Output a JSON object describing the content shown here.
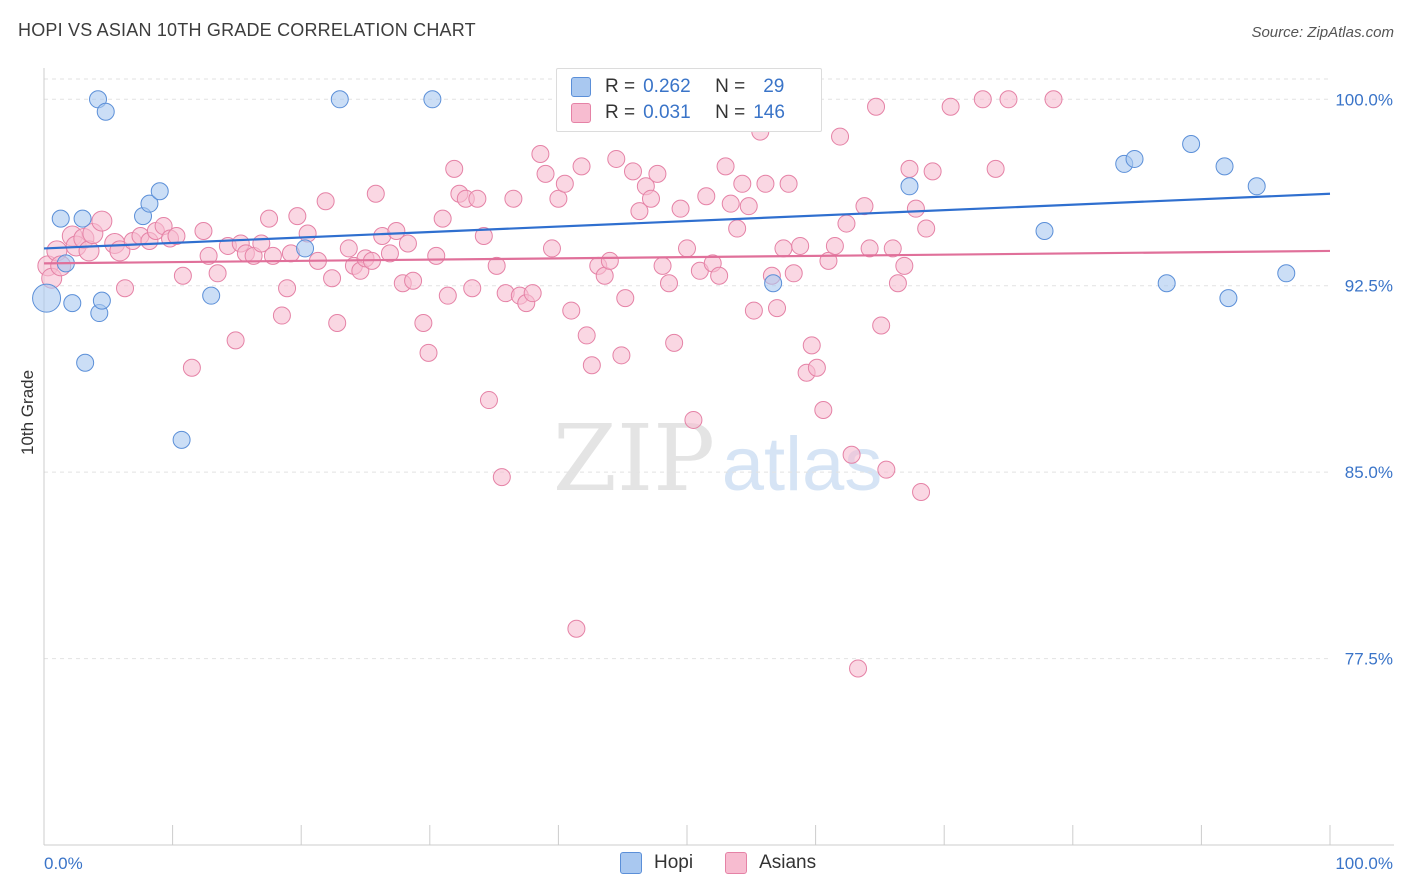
{
  "title": "HOPI VS ASIAN 10TH GRADE CORRELATION CHART",
  "source": "Source: ZipAtlas.com",
  "watermark": {
    "zip": "ZIP",
    "atlas": "atlas"
  },
  "legend": {
    "rows": [
      {
        "r_label": "R =",
        "r_value": "0.262",
        "n_label": "N =",
        "n_value": "29",
        "color": "#a9c8f0",
        "border": "#5b8fd8"
      },
      {
        "r_label": "R =",
        "r_value": "0.031",
        "n_label": "N =",
        "n_value": "146",
        "color": "#f7bcd0",
        "border": "#e582a6"
      }
    ]
  },
  "bottom_legend": [
    {
      "label": "Hopi",
      "color": "#a9c8f0",
      "border": "#5b8fd8"
    },
    {
      "label": "Asians",
      "color": "#f7bcd0",
      "border": "#e582a6"
    }
  ],
  "chart_data": {
    "type": "scatter",
    "title": "HOPI VS ASIAN 10TH GRADE CORRELATION CHART",
    "xlabel": "",
    "ylabel": "10th Grade",
    "xlim": [
      0,
      100
    ],
    "ylim": [
      70.0,
      101.5
    ],
    "x_tick_labels": [
      "0.0%",
      "100.0%"
    ],
    "y_ticks": [
      77.5,
      85.0,
      92.5,
      100.0
    ],
    "y_tick_labels": [
      "77.5%",
      "85.0%",
      "92.5%",
      "100.0%"
    ],
    "grid": true,
    "series": [
      {
        "name": "Hopi",
        "color": "#a9c8f0",
        "stroke": "#5b8fd8",
        "trend": {
          "color": "#2f6fcf",
          "x": [
            0,
            100
          ],
          "y": [
            94.0,
            96.2
          ]
        },
        "points": [
          [
            0.2,
            92.0
          ],
          [
            1.3,
            95.2
          ],
          [
            1.7,
            93.4
          ],
          [
            2.2,
            91.8
          ],
          [
            3.0,
            95.2
          ],
          [
            3.2,
            89.4
          ],
          [
            4.3,
            91.4
          ],
          [
            4.5,
            91.9
          ],
          [
            4.2,
            100.0
          ],
          [
            4.8,
            99.5
          ],
          [
            7.7,
            95.3
          ],
          [
            8.2,
            95.8
          ],
          [
            9.0,
            96.3
          ],
          [
            10.7,
            86.3
          ],
          [
            13.0,
            92.1
          ],
          [
            20.3,
            94.0
          ],
          [
            23.0,
            100.0
          ],
          [
            30.2,
            100.0
          ],
          [
            67.3,
            96.5
          ],
          [
            77.8,
            94.7
          ],
          [
            84.0,
            97.4
          ],
          [
            84.8,
            97.6
          ],
          [
            87.3,
            92.6
          ],
          [
            89.2,
            98.2
          ],
          [
            91.8,
            97.3
          ],
          [
            94.3,
            96.5
          ],
          [
            96.6,
            93.0
          ],
          [
            56.7,
            92.6
          ],
          [
            92.1,
            92.0
          ]
        ]
      },
      {
        "name": "Asians",
        "color": "#f7bcd0",
        "stroke": "#e582a6",
        "trend": {
          "color": "#e0709a",
          "x": [
            0,
            100
          ],
          "y": [
            93.4,
            93.9
          ]
        },
        "points": [
          [
            0.3,
            93.3
          ],
          [
            0.6,
            92.8
          ],
          [
            1.0,
            93.9
          ],
          [
            1.3,
            93.3
          ],
          [
            2.2,
            94.5
          ],
          [
            2.5,
            94.1
          ],
          [
            3.1,
            94.4
          ],
          [
            3.5,
            93.9
          ],
          [
            3.8,
            94.6
          ],
          [
            4.5,
            95.1
          ],
          [
            5.5,
            94.2
          ],
          [
            5.9,
            93.9
          ],
          [
            6.3,
            92.4
          ],
          [
            6.9,
            94.3
          ],
          [
            7.5,
            94.5
          ],
          [
            8.2,
            94.3
          ],
          [
            8.7,
            94.7
          ],
          [
            9.3,
            94.9
          ],
          [
            9.8,
            94.4
          ],
          [
            10.3,
            94.5
          ],
          [
            10.8,
            92.9
          ],
          [
            11.5,
            89.2
          ],
          [
            12.4,
            94.7
          ],
          [
            12.8,
            93.7
          ],
          [
            13.5,
            93.0
          ],
          [
            14.3,
            94.1
          ],
          [
            14.9,
            90.3
          ],
          [
            15.3,
            94.2
          ],
          [
            15.7,
            93.8
          ],
          [
            16.3,
            93.7
          ],
          [
            16.9,
            94.2
          ],
          [
            17.5,
            95.2
          ],
          [
            17.8,
            93.7
          ],
          [
            18.5,
            91.3
          ],
          [
            18.9,
            92.4
          ],
          [
            19.2,
            93.8
          ],
          [
            19.7,
            95.3
          ],
          [
            20.5,
            94.6
          ],
          [
            21.3,
            93.5
          ],
          [
            21.9,
            95.9
          ],
          [
            22.4,
            92.8
          ],
          [
            22.8,
            91.0
          ],
          [
            23.7,
            94.0
          ],
          [
            24.1,
            93.3
          ],
          [
            24.6,
            93.1
          ],
          [
            25.0,
            93.6
          ],
          [
            25.5,
            93.5
          ],
          [
            25.8,
            96.2
          ],
          [
            26.3,
            94.5
          ],
          [
            26.9,
            93.8
          ],
          [
            27.4,
            94.7
          ],
          [
            27.9,
            92.6
          ],
          [
            28.3,
            94.2
          ],
          [
            28.7,
            92.7
          ],
          [
            29.5,
            91.0
          ],
          [
            29.9,
            89.8
          ],
          [
            30.5,
            93.7
          ],
          [
            31.0,
            95.2
          ],
          [
            31.4,
            92.1
          ],
          [
            31.9,
            97.2
          ],
          [
            32.3,
            96.2
          ],
          [
            32.8,
            96.0
          ],
          [
            33.3,
            92.4
          ],
          [
            33.7,
            96.0
          ],
          [
            34.2,
            94.5
          ],
          [
            34.6,
            87.9
          ],
          [
            35.2,
            93.3
          ],
          [
            35.6,
            84.8
          ],
          [
            35.9,
            92.2
          ],
          [
            36.5,
            96.0
          ],
          [
            37.0,
            92.1
          ],
          [
            37.5,
            91.8
          ],
          [
            38.0,
            92.2
          ],
          [
            38.6,
            97.8
          ],
          [
            39.0,
            97.0
          ],
          [
            39.5,
            94.0
          ],
          [
            40.0,
            96.0
          ],
          [
            40.5,
            96.6
          ],
          [
            41.0,
            91.5
          ],
          [
            41.4,
            78.7
          ],
          [
            41.8,
            97.3
          ],
          [
            42.2,
            90.5
          ],
          [
            42.6,
            89.3
          ],
          [
            43.1,
            93.3
          ],
          [
            43.6,
            92.9
          ],
          [
            44.0,
            93.5
          ],
          [
            44.5,
            97.6
          ],
          [
            44.9,
            89.7
          ],
          [
            45.2,
            92.0
          ],
          [
            45.8,
            97.1
          ],
          [
            46.3,
            95.5
          ],
          [
            46.8,
            96.5
          ],
          [
            47.2,
            96.0
          ],
          [
            47.7,
            97.0
          ],
          [
            48.1,
            93.3
          ],
          [
            48.6,
            92.6
          ],
          [
            49.0,
            90.2
          ],
          [
            49.5,
            95.6
          ],
          [
            50.0,
            94.0
          ],
          [
            50.5,
            87.1
          ],
          [
            51.0,
            93.1
          ],
          [
            51.5,
            96.1
          ],
          [
            52.0,
            93.4
          ],
          [
            52.5,
            92.9
          ],
          [
            53.0,
            97.3
          ],
          [
            53.4,
            95.8
          ],
          [
            53.9,
            94.8
          ],
          [
            54.3,
            96.6
          ],
          [
            54.8,
            95.7
          ],
          [
            55.2,
            91.5
          ],
          [
            55.7,
            98.7
          ],
          [
            56.1,
            96.6
          ],
          [
            56.6,
            92.9
          ],
          [
            57.0,
            91.6
          ],
          [
            57.5,
            94.0
          ],
          [
            57.9,
            96.6
          ],
          [
            58.3,
            93.0
          ],
          [
            58.8,
            94.1
          ],
          [
            59.3,
            89.0
          ],
          [
            59.7,
            90.1
          ],
          [
            60.1,
            89.2
          ],
          [
            60.6,
            87.5
          ],
          [
            61.0,
            93.5
          ],
          [
            61.5,
            94.1
          ],
          [
            61.9,
            98.5
          ],
          [
            62.4,
            95.0
          ],
          [
            62.8,
            85.7
          ],
          [
            63.3,
            77.1
          ],
          [
            63.8,
            95.7
          ],
          [
            64.2,
            94.0
          ],
          [
            64.7,
            99.7
          ],
          [
            65.1,
            90.9
          ],
          [
            65.5,
            85.1
          ],
          [
            66.0,
            94.0
          ],
          [
            66.4,
            92.6
          ],
          [
            66.9,
            93.3
          ],
          [
            67.3,
            97.2
          ],
          [
            67.8,
            95.6
          ],
          [
            68.2,
            84.2
          ],
          [
            68.6,
            94.8
          ],
          [
            69.1,
            97.1
          ],
          [
            70.5,
            99.7
          ],
          [
            73.0,
            100.0
          ],
          [
            74.0,
            97.2
          ],
          [
            75.0,
            100.0
          ],
          [
            78.5,
            100.0
          ]
        ]
      }
    ]
  }
}
